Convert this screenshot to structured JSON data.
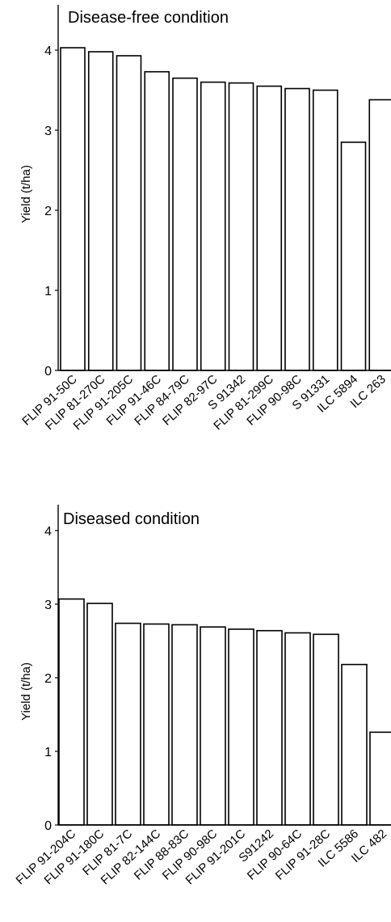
{
  "chart_data": [
    {
      "type": "bar",
      "title": "Disease-free condition",
      "ylabel": "Yield (t/ha)",
      "xlabel": "",
      "ylim": [
        0,
        4.4
      ],
      "yticks": [
        0,
        1,
        2,
        3,
        4
      ],
      "grid": false,
      "categories": [
        "FLIP 91-50C",
        "FLIP 81-270C",
        "FLIP 91-205C",
        "FLIP 91-46C",
        "FLIP 84-79C",
        "FLIP 82-97C",
        "S 91342",
        "FLIP 81-299C",
        "FLIP 90-98C",
        "S 91331",
        "ILC 5894",
        "ILC 263"
      ],
      "values": [
        4.03,
        3.98,
        3.93,
        3.73,
        3.65,
        3.6,
        3.59,
        3.55,
        3.52,
        3.5,
        2.85,
        3.38
      ]
    },
    {
      "type": "bar",
      "title": "Diseased condition",
      "ylabel": "Yield (t/ha)",
      "xlabel": "",
      "ylim": [
        0,
        4.4
      ],
      "yticks": [
        0,
        1,
        2,
        3,
        4
      ],
      "grid": false,
      "categories": [
        "FLIP 91-204C",
        "FLIP 91-180C",
        "FLIP 81-7C",
        "FLIP 82-144C",
        "FLIP 88-83C",
        "FLIP 90-98C",
        "FLIP 91-201C",
        "S91242",
        "FLIP 90-64C",
        "FLIP 91-28C",
        "ILC 5586",
        "ILC 482"
      ],
      "values": [
        3.07,
        3.01,
        2.74,
        2.73,
        2.72,
        2.69,
        2.66,
        2.64,
        2.61,
        2.59,
        2.18,
        1.26
      ]
    }
  ]
}
